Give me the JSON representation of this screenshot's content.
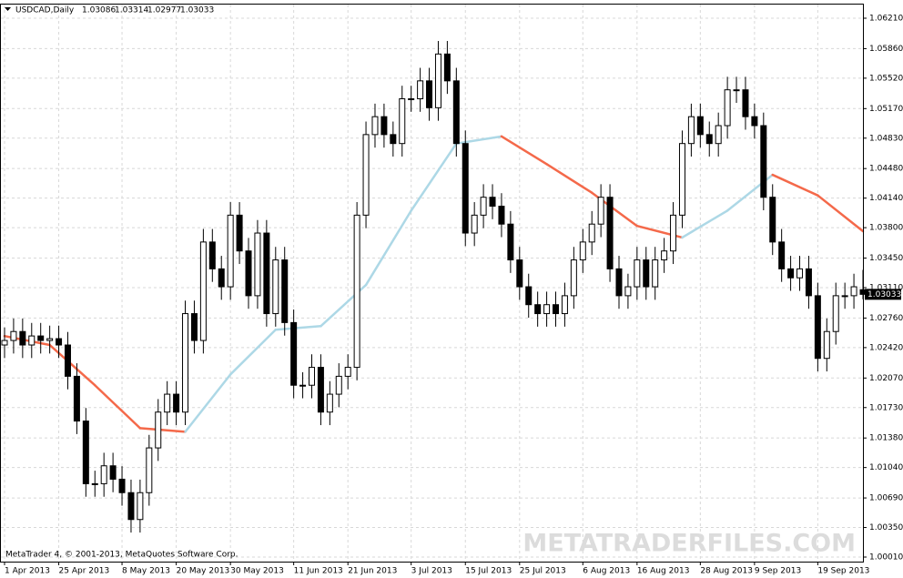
{
  "chart_data": {
    "type": "candlestick",
    "title": "USDCAD,Daily",
    "footer": "MetaTrader 4, © 2001-2013, MetaQuotes Software Corp.",
    "watermark": "METATRADERFILES.COM",
    "categories": [
      "1 Apr 2013",
      null,
      null,
      null,
      null,
      null,
      "25 Apr 2013",
      null,
      null,
      null,
      null,
      null,
      null,
      "8 May 2013",
      null,
      null,
      null,
      null,
      null,
      "20 May 2013",
      null,
      null,
      null,
      null,
      null,
      "30 May 2013",
      null,
      null,
      null,
      null,
      null,
      null,
      "11 Jun 2013",
      null,
      null,
      null,
      null,
      null,
      "21 Jun 2013",
      null,
      null,
      null,
      null,
      null,
      null,
      "3 Jul 2013",
      null,
      null,
      null,
      null,
      null,
      "15 Jul 2013",
      null,
      null,
      null,
      null,
      null,
      "25 Jul 2013",
      null,
      null,
      null,
      null,
      null,
      null,
      "6 Aug 2013",
      null,
      null,
      null,
      null,
      null,
      "16 Aug 2013",
      null,
      null,
      null,
      null,
      null,
      null,
      "28 Aug 2013",
      null,
      null,
      null,
      null,
      null,
      "9 Sep 2013",
      null,
      null,
      null,
      null,
      null,
      null,
      "19 Sep 2013",
      null,
      null,
      null,
      null,
      null
    ],
    "open": [
      1.0245,
      1.02502,
      1.02605,
      1.0245,
      1.02554,
      1.02502,
      1.02523,
      1.0245,
      1.0209,
      1.01575,
      1.00854,
      1.00854,
      1.0106,
      1.00906,
      1.00751,
      1.00442,
      1.00751,
      1.01266,
      1.01678,
      1.01884,
      1.01678,
      1.02811,
      1.02502,
      1.03635,
      1.03326,
      1.0312,
      1.03944,
      1.03532,
      1.03017,
      1.03738,
      1.02811,
      1.03429,
      1.02708,
      1.01987,
      1.01987,
      1.02193,
      1.01678,
      1.01884,
      1.0209,
      1.02193,
      1.03944,
      1.04871,
      1.05077,
      1.04871,
      1.04768,
      1.05283,
      1.05283,
      1.05489,
      1.0518,
      1.05798,
      1.05489,
      1.04768,
      1.03738,
      1.03944,
      1.0415,
      1.04047,
      1.03841,
      1.03429,
      1.0312,
      1.02914,
      1.02811,
      1.02914,
      1.02811,
      1.03017,
      1.03429,
      1.03635,
      1.03841,
      1.0415,
      1.03326,
      1.03017,
      1.0312,
      1.03429,
      1.0312,
      1.03429,
      1.03532,
      1.03944,
      1.04768,
      1.05077,
      1.04871,
      1.04768,
      1.04974,
      1.05386,
      1.05386,
      1.05077,
      1.04974,
      1.0415,
      1.03635,
      1.03326,
      1.03223,
      1.03326,
      1.03017,
      1.02296,
      1.02605,
      1.03017,
      1.03017,
      1.03086
    ],
    "high": [
      1.02652,
      1.02755,
      1.02755,
      1.02704,
      1.02704,
      1.02673,
      1.02673,
      1.026,
      1.0224,
      1.01725,
      1.01004,
      1.0121,
      1.0121,
      1.01056,
      1.00901,
      1.00901,
      1.01416,
      1.01828,
      1.02034,
      1.02034,
      1.02961,
      1.02961,
      1.03785,
      1.03785,
      1.03476,
      1.04094,
      1.04094,
      1.03682,
      1.03888,
      1.03888,
      1.03579,
      1.03579,
      1.02858,
      1.02137,
      1.02343,
      1.02343,
      1.02034,
      1.0224,
      1.02343,
      1.04094,
      1.05021,
      1.05227,
      1.05227,
      1.05021,
      1.05433,
      1.05433,
      1.05639,
      1.05639,
      1.05948,
      1.05948,
      1.05639,
      1.04918,
      1.04094,
      1.043,
      1.043,
      1.04197,
      1.03991,
      1.03579,
      1.0327,
      1.03064,
      1.03064,
      1.03064,
      1.03167,
      1.03579,
      1.03785,
      1.03991,
      1.043,
      1.043,
      1.03476,
      1.0327,
      1.03579,
      1.03579,
      1.03579,
      1.03682,
      1.04094,
      1.04918,
      1.05227,
      1.05227,
      1.05021,
      1.05124,
      1.05536,
      1.05536,
      1.05536,
      1.05227,
      1.05124,
      1.043,
      1.03785,
      1.03476,
      1.03476,
      1.03476,
      1.03167,
      1.02755,
      1.03167,
      1.03167,
      1.0327,
      1.03314
    ],
    "low": [
      1.023,
      1.02352,
      1.023,
      1.023,
      1.02352,
      1.02352,
      1.023,
      1.0194,
      1.01425,
      1.00704,
      1.00704,
      1.00704,
      1.00756,
      1.00601,
      1.00292,
      1.00292,
      1.00601,
      1.01116,
      1.01528,
      1.01528,
      1.01528,
      1.02352,
      1.02352,
      1.03176,
      1.0297,
      1.0297,
      1.03382,
      1.02867,
      1.02867,
      1.02661,
      1.02661,
      1.02558,
      1.01837,
      1.01837,
      1.01837,
      1.01528,
      1.01528,
      1.01734,
      1.0194,
      1.02043,
      1.03794,
      1.04721,
      1.04721,
      1.04618,
      1.04618,
      1.05133,
      1.05133,
      1.0503,
      1.0503,
      1.05339,
      1.04618,
      1.03588,
      1.03588,
      1.03794,
      1.03897,
      1.03691,
      1.03279,
      1.0297,
      1.02764,
      1.02661,
      1.02661,
      1.02661,
      1.02661,
      1.02867,
      1.03279,
      1.03485,
      1.03691,
      1.03176,
      1.02867,
      1.02867,
      1.0297,
      1.0297,
      1.0297,
      1.03279,
      1.03382,
      1.03794,
      1.04618,
      1.04721,
      1.04618,
      1.04618,
      1.04824,
      1.05236,
      1.04927,
      1.04824,
      1.04,
      1.03485,
      1.03176,
      1.03073,
      1.03073,
      1.02867,
      1.02146,
      1.02146,
      1.02455,
      1.02867,
      1.02867,
      1.02977
    ],
    "close": [
      1.02502,
      1.02605,
      1.0245,
      1.02554,
      1.02502,
      1.02523,
      1.0245,
      1.0209,
      1.01575,
      1.00854,
      1.00854,
      1.0106,
      1.00906,
      1.00751,
      1.00442,
      1.00751,
      1.01266,
      1.01678,
      1.01884,
      1.01678,
      1.02811,
      1.02502,
      1.03635,
      1.03326,
      1.0312,
      1.03944,
      1.03532,
      1.03017,
      1.03738,
      1.02811,
      1.03429,
      1.02708,
      1.01987,
      1.01987,
      1.02193,
      1.01678,
      1.01884,
      1.0209,
      1.02193,
      1.03944,
      1.04871,
      1.05077,
      1.04871,
      1.04768,
      1.05283,
      1.05283,
      1.05489,
      1.0518,
      1.05798,
      1.05489,
      1.04768,
      1.03738,
      1.03944,
      1.0415,
      1.04047,
      1.03841,
      1.03429,
      1.0312,
      1.02914,
      1.02811,
      1.02914,
      1.02811,
      1.03017,
      1.03429,
      1.03635,
      1.03841,
      1.0415,
      1.03326,
      1.03017,
      1.0312,
      1.03429,
      1.0312,
      1.03429,
      1.03532,
      1.03944,
      1.04768,
      1.05077,
      1.04871,
      1.04768,
      1.04974,
      1.05386,
      1.05386,
      1.05077,
      1.04974,
      1.0415,
      1.03635,
      1.03326,
      1.03223,
      1.03326,
      1.03017,
      1.02296,
      1.02605,
      1.03017,
      1.03017,
      1.0312,
      1.03033
    ],
    "up_fill": "#ffffff",
    "down_fill": "#000000",
    "candle_stroke": "#000000",
    "ma": {
      "x": [
        0,
        5,
        10,
        15,
        20,
        25,
        30,
        35,
        40,
        45,
        50,
        55,
        60,
        65,
        70,
        75,
        80,
        85,
        90,
        95
      ],
      "values": [
        1.02553,
        1.0245,
        1.01987,
        1.01493,
        1.01451,
        1.02111,
        1.02626,
        1.02667,
        1.03141,
        1.03996,
        1.04768,
        1.0485,
        1.04531,
        1.04202,
        1.0382,
        1.03687,
        1.03996,
        1.04408,
        1.04171,
        1.03759
      ],
      "up_color": "#add8e6",
      "down_color": "#f4694a"
    },
    "ylim": [
      1.0001,
      1.0621
    ],
    "yticks": [
      {
        "value": 1.0621,
        "label": "1.06210"
      },
      {
        "value": 1.0586,
        "label": "1.05860"
      },
      {
        "value": 1.0552,
        "label": "1.05520"
      },
      {
        "value": 1.0517,
        "label": "1.05170"
      },
      {
        "value": 1.0483,
        "label": "1.04830"
      },
      {
        "value": 1.0448,
        "label": "1.04480"
      },
      {
        "value": 1.0414,
        "label": "1.04140"
      },
      {
        "value": 1.038,
        "label": "1.03800"
      },
      {
        "value": 1.0345,
        "label": "1.03450"
      },
      {
        "value": 1.0311,
        "label": "1.03110"
      },
      {
        "value": 1.0276,
        "label": "1.02760"
      },
      {
        "value": 1.0242,
        "label": "1.02420"
      },
      {
        "value": 1.0207,
        "label": "1.02070"
      },
      {
        "value": 1.0173,
        "label": "1.01730"
      },
      {
        "value": 1.0138,
        "label": "1.01380"
      },
      {
        "value": 1.0104,
        "label": "1.01040"
      },
      {
        "value": 1.0069,
        "label": "1.00690"
      },
      {
        "value": 1.0035,
        "label": "1.00350"
      },
      {
        "value": 1.0001,
        "label": "1.00010"
      }
    ],
    "grid": true
  }
}
